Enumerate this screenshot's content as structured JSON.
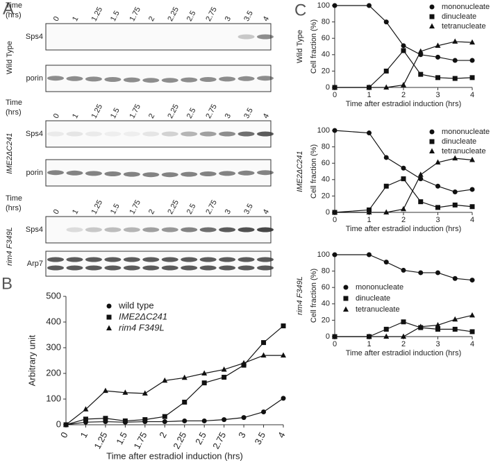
{
  "figure": {
    "panel_labels": [
      "A",
      "B",
      "C"
    ]
  },
  "blots": {
    "time_label": [
      "Time",
      "(hrs)"
    ],
    "lanes": [
      "0",
      "1",
      "1.25",
      "1.5",
      "1.75",
      "2",
      "2.25",
      "2.5",
      "2.75",
      "3",
      "3.5",
      "4"
    ],
    "strains": [
      "Wild Type",
      "IME2ΔC241",
      "rim4 F349L"
    ],
    "rows": [
      [
        "Sps4",
        "porin"
      ],
      [
        "Sps4",
        "porin"
      ],
      [
        "Sps4",
        "Arp7"
      ]
    ]
  },
  "chart_data": [
    {
      "type": "line",
      "ylabel": "Arbitrary unit",
      "xlabel": "Time after estradiol induction (hrs)",
      "categories": [
        "0",
        "1",
        "1.25",
        "1.5",
        "1.75",
        "2",
        "2.25",
        "2.5",
        "2.75",
        "3",
        "3.5",
        "4"
      ],
      "ylim": [
        0,
        500
      ],
      "yticks": [
        0,
        100,
        200,
        300,
        400,
        500
      ],
      "legend": "upper center",
      "series": [
        {
          "name": "wild type",
          "marker": "circle",
          "color": "#111",
          "italic": false,
          "values": [
            0,
            10,
            12,
            10,
            12,
            12,
            15,
            15,
            20,
            28,
            50,
            103
          ]
        },
        {
          "name": "IME2ΔC241",
          "marker": "square",
          "color": "#111",
          "italic": true,
          "values": [
            0,
            22,
            25,
            15,
            20,
            32,
            88,
            163,
            185,
            232,
            320,
            385
          ]
        },
        {
          "name": "rim4 F349L",
          "marker": "triangle",
          "color": "#111",
          "italic": true,
          "values": [
            0,
            60,
            132,
            125,
            122,
            172,
            183,
            200,
            215,
            240,
            270,
            270
          ]
        }
      ]
    },
    {
      "type": "line",
      "title": "Wild Type",
      "title_italic": false,
      "ylabel": "Cell fraction (%)",
      "xlabel": "Time after estradiol induction (hrs)",
      "x": [
        0,
        1,
        1.5,
        2,
        2.5,
        3,
        3.5,
        4
      ],
      "xlim": [
        0,
        4
      ],
      "xticks": [
        0,
        1,
        2,
        3,
        4
      ],
      "ylim": [
        0,
        100
      ],
      "yticks": [
        0,
        20,
        40,
        60,
        80,
        100
      ],
      "legend": "upper right",
      "series": [
        {
          "name": "mononucleate",
          "marker": "circle",
          "color": "#111",
          "values": [
            100,
            100,
            80,
            51,
            40,
            37,
            33,
            33
          ]
        },
        {
          "name": "dinucleate",
          "marker": "square",
          "color": "#111",
          "values": [
            0,
            0,
            20,
            45,
            16,
            12,
            11,
            12
          ]
        },
        {
          "name": "tetranucleate",
          "marker": "triangle",
          "color": "#111",
          "values": [
            0,
            0,
            0,
            3,
            44,
            51,
            56,
            55
          ]
        }
      ]
    },
    {
      "type": "line",
      "title": "IME2ΔC241",
      "title_italic": true,
      "ylabel": "Cell fraction (%)",
      "xlabel": "Time after estradiol induction (hrs)",
      "x": [
        0,
        1,
        1.5,
        2,
        2.5,
        3,
        3.5,
        4
      ],
      "xlim": [
        0,
        4
      ],
      "xticks": [
        0,
        1,
        2,
        3,
        4
      ],
      "ylim": [
        0,
        100
      ],
      "yticks": [
        0,
        20,
        40,
        60,
        80,
        100
      ],
      "legend": "upper right",
      "series": [
        {
          "name": "mononucleate",
          "marker": "circle",
          "color": "#111",
          "values": [
            100,
            97,
            67,
            54,
            41,
            32,
            25,
            28
          ]
        },
        {
          "name": "dinucleate",
          "marker": "square",
          "color": "#111",
          "values": [
            0,
            3,
            32,
            41,
            13,
            6,
            9,
            7
          ]
        },
        {
          "name": "tetranucleate",
          "marker": "triangle",
          "color": "#111",
          "values": [
            0,
            0,
            0,
            4,
            46,
            61,
            66,
            64
          ]
        }
      ]
    },
    {
      "type": "line",
      "title": "rim4 F349L",
      "title_italic": true,
      "ylabel": "Cell fraction (%)",
      "xlabel": "Time after estradiol induction (hrs)",
      "x": [
        0,
        1,
        1.5,
        2,
        2.5,
        3,
        3.5,
        4
      ],
      "xlim": [
        0,
        4
      ],
      "xticks": [
        0,
        1,
        2,
        3,
        4
      ],
      "ylim": [
        0,
        100
      ],
      "yticks": [
        0,
        20,
        40,
        60,
        80,
        100
      ],
      "legend": "center left",
      "series": [
        {
          "name": "mononucleate",
          "marker": "circle",
          "color": "#111",
          "values": [
            100,
            100,
            91,
            81,
            78,
            78,
            71,
            69
          ]
        },
        {
          "name": "dinucleate",
          "marker": "square",
          "color": "#111",
          "values": [
            0,
            0,
            9,
            18,
            11,
            9,
            9,
            6
          ]
        },
        {
          "name": "tetranucleate",
          "marker": "triangle",
          "color": "#111",
          "values": [
            0,
            0,
            0,
            0,
            12,
            14,
            21,
            26
          ]
        }
      ]
    }
  ]
}
